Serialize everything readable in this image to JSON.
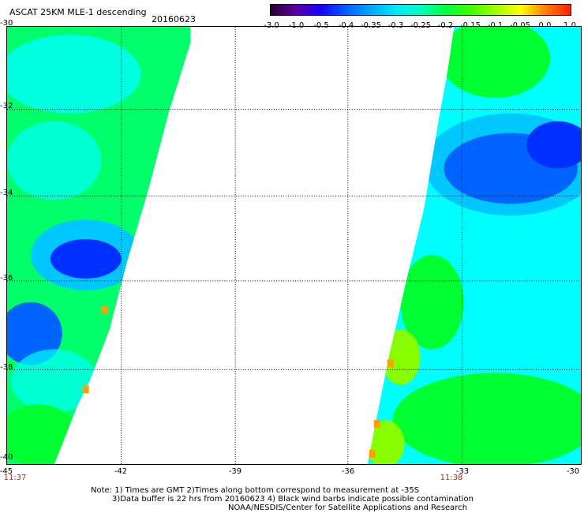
{
  "header": {
    "title": "ASCAT 25KM MLE-1 descending",
    "date": "20160623"
  },
  "colorbar": {
    "ticks": [
      "-3.0",
      "-1.0",
      "-0.5",
      "-0.4",
      "-0.35",
      "-0.3",
      "-0.25",
      "-0.2",
      "-0.15",
      "-0.1",
      "-0.05",
      "0.0",
      "1.0"
    ],
    "colors": [
      "#2a0030",
      "#5a00a0",
      "#1800ff",
      "#0060ff",
      "#00a8ff",
      "#00e8ff",
      "#00ffc0",
      "#00ff40",
      "#40ff00",
      "#a0ff00",
      "#ffff00",
      "#ff8000",
      "#ff2000"
    ]
  },
  "map": {
    "lat_labels": [
      "-30",
      "-32",
      "-34",
      "-36",
      "-38",
      "-40"
    ],
    "lon_labels": [
      "-45",
      "-42",
      "-39",
      "-36",
      "-33",
      "-30"
    ],
    "time_labels": [
      "11:37",
      "11:38"
    ],
    "field_colors": {
      "green": "#00ff30",
      "cyan": "#00ffff",
      "teal": "#00ffb4",
      "lightblue": "#00c8ff",
      "blue": "#0064ff",
      "deepblue": "#0030ff",
      "yellowgreen": "#88ff00",
      "orange": "#ffa000"
    }
  },
  "notes": {
    "line1": "Note: 1) Times are GMT 2)Times along bottom correspond to measurement at -35S",
    "line2": "3)Data buffer is 22 hrs from 20160623 4) Black wind barbs indicate possible contamination",
    "line3": "NOAA/NESDIS/Center for Satellite Applications and Research"
  }
}
